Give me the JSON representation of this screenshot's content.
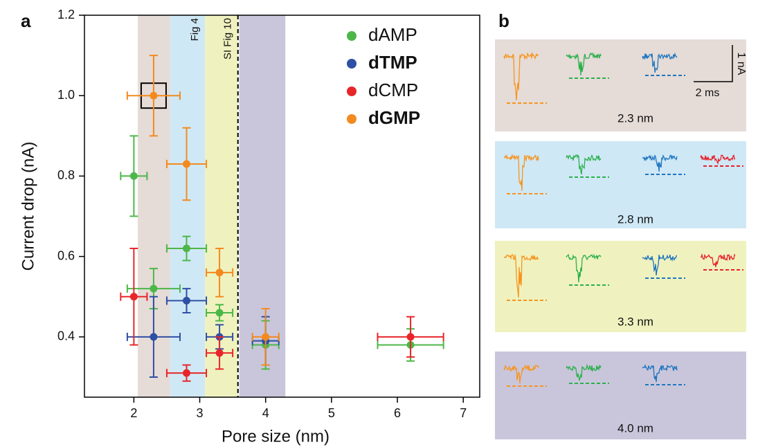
{
  "panel_labels": [
    "a",
    "b"
  ],
  "chart_data": {
    "type": "scatter",
    "x_label": "Pore size (nm)",
    "y_label": "Current drop (nA)",
    "xlim": [
      1.25,
      7.25
    ],
    "ylim": [
      0.25,
      1.2
    ],
    "xticks": [
      2,
      3,
      4,
      5,
      6,
      7
    ],
    "yticks": [
      {
        "value": 0.4,
        "label": "0.4"
      },
      {
        "value": 0.6,
        "label": "0.6"
      },
      {
        "value": 0.8,
        "label": "0.8"
      },
      {
        "value": 1.0,
        "label": "1.0"
      },
      {
        "value": 1.2,
        "label": "1.2"
      }
    ],
    "bands": [
      {
        "xlim": [
          2.06,
          2.55
        ],
        "color": "#e5dbd7"
      },
      {
        "xlim": [
          2.55,
          3.08
        ],
        "color": "#cfe8f6",
        "label": "Fig 4"
      },
      {
        "xlim": [
          3.08,
          3.58
        ],
        "color": "#eff2bf",
        "label": "SI Fig 10"
      },
      {
        "xlim": [
          3.6,
          4.3
        ],
        "color": "#c9c6dc"
      }
    ],
    "dashed_x": 3.58,
    "series": [
      {
        "name": "dAMP",
        "color": "#4cb748",
        "x": [
          2.0,
          2.3,
          2.8,
          3.3,
          4.0,
          6.2
        ],
        "values": [
          0.8,
          0.52,
          0.62,
          0.46,
          0.38,
          0.38
        ],
        "xerr": [
          0.2,
          0.4,
          0.3,
          0.2,
          0.2,
          0.5
        ],
        "yerr": [
          0.1,
          0.05,
          0.03,
          0.02,
          0.06,
          0.04
        ]
      },
      {
        "name": "dTMP",
        "color": "#2e4fa3",
        "x": [
          2.3,
          2.8,
          3.3,
          4.0
        ],
        "values": [
          0.4,
          0.49,
          0.4,
          0.39
        ],
        "xerr": [
          0.4,
          0.3,
          0.2,
          0.2
        ],
        "yerr": [
          0.1,
          0.03,
          0.03,
          0.06
        ]
      },
      {
        "name": "dCMP",
        "color": "#e8262a",
        "x": [
          2.0,
          2.8,
          3.3,
          6.2
        ],
        "values": [
          0.5,
          0.31,
          0.36,
          0.4
        ],
        "xerr": [
          0.2,
          0.3,
          0.2,
          0.5
        ],
        "yerr": [
          0.12,
          0.02,
          0.04,
          0.05
        ]
      },
      {
        "name": "dGMP",
        "color": "#f38a1f",
        "x": [
          2.3,
          2.8,
          3.3,
          4.0
        ],
        "values": [
          1.0,
          0.83,
          0.56,
          0.4
        ],
        "xerr": [
          0.4,
          0.3,
          0.2,
          0.2
        ],
        "yerr": [
          0.1,
          0.09,
          0.06,
          0.07
        ]
      }
    ]
  },
  "panel_b": {
    "boxes": [
      {
        "label": "2.3 nm",
        "color": "#e5dbd7"
      },
      {
        "label": "2.8 nm",
        "color": "#cfe8f6"
      },
      {
        "label": "3.3 nm",
        "color": "#eff2bf"
      },
      {
        "label": "4.0 nm",
        "color": "#c9c6dc"
      }
    ],
    "scale_bar": {
      "current": "1 nA",
      "time": "2 ms"
    }
  }
}
